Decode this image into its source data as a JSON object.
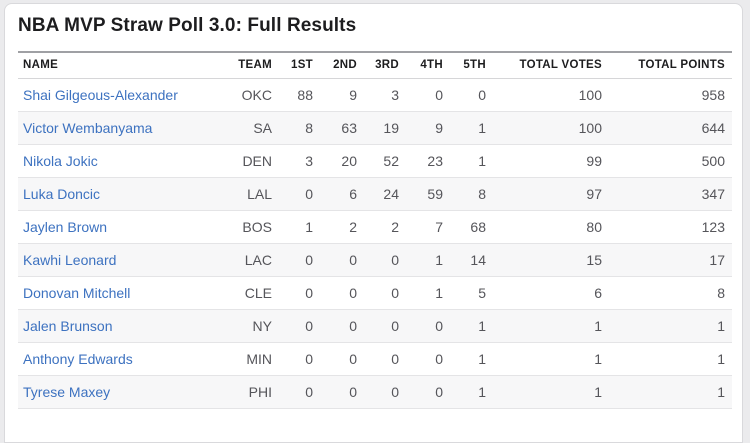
{
  "page_title": "NBA MVP Straw Poll 3.0: Full Results",
  "chart_data": {
    "type": "table",
    "title": "NBA MVP Straw Poll 3.0: Full Results",
    "columns": [
      "NAME",
      "TEAM",
      "1ST",
      "2ND",
      "3RD",
      "4TH",
      "5TH",
      "TOTAL VOTES",
      "TOTAL POINTS"
    ],
    "column_alignments": [
      "left",
      "right",
      "right",
      "right",
      "right",
      "right",
      "right",
      "right",
      "right"
    ],
    "rows": [
      [
        "Shai Gilgeous-Alexander",
        "OKC",
        88,
        9,
        3,
        0,
        0,
        100,
        958
      ],
      [
        "Victor Wembanyama",
        "SA",
        8,
        63,
        19,
        9,
        1,
        100,
        644
      ],
      [
        "Nikola Jokic",
        "DEN",
        3,
        20,
        52,
        23,
        1,
        99,
        500
      ],
      [
        "Luka Doncic",
        "LAL",
        0,
        6,
        24,
        59,
        8,
        97,
        347
      ],
      [
        "Jaylen Brown",
        "BOS",
        1,
        2,
        2,
        7,
        68,
        80,
        123
      ],
      [
        "Kawhi Leonard",
        "LAC",
        0,
        0,
        0,
        1,
        14,
        15,
        17
      ],
      [
        "Donovan Mitchell",
        "CLE",
        0,
        0,
        0,
        1,
        5,
        6,
        8
      ],
      [
        "Jalen Brunson",
        "NY",
        0,
        0,
        0,
        0,
        1,
        1,
        1
      ],
      [
        "Anthony Edwards",
        "MIN",
        0,
        0,
        0,
        0,
        1,
        1,
        1
      ],
      [
        "Tyrese Maxey",
        "PHI",
        0,
        0,
        0,
        0,
        1,
        1,
        1
      ]
    ]
  },
  "colors": {
    "page_background": "#ebebed",
    "card_background": "#ffffff",
    "card_border": "#d9d9dc",
    "title_text": "#1d1d1f",
    "header_text": "#1c1c1e",
    "cell_text": "#55555a",
    "player_link": "#3d72c0",
    "row_stripe": "#f7f7f8",
    "row_separator": "#e4e4e6",
    "table_top_border": "#9fa0a4"
  }
}
